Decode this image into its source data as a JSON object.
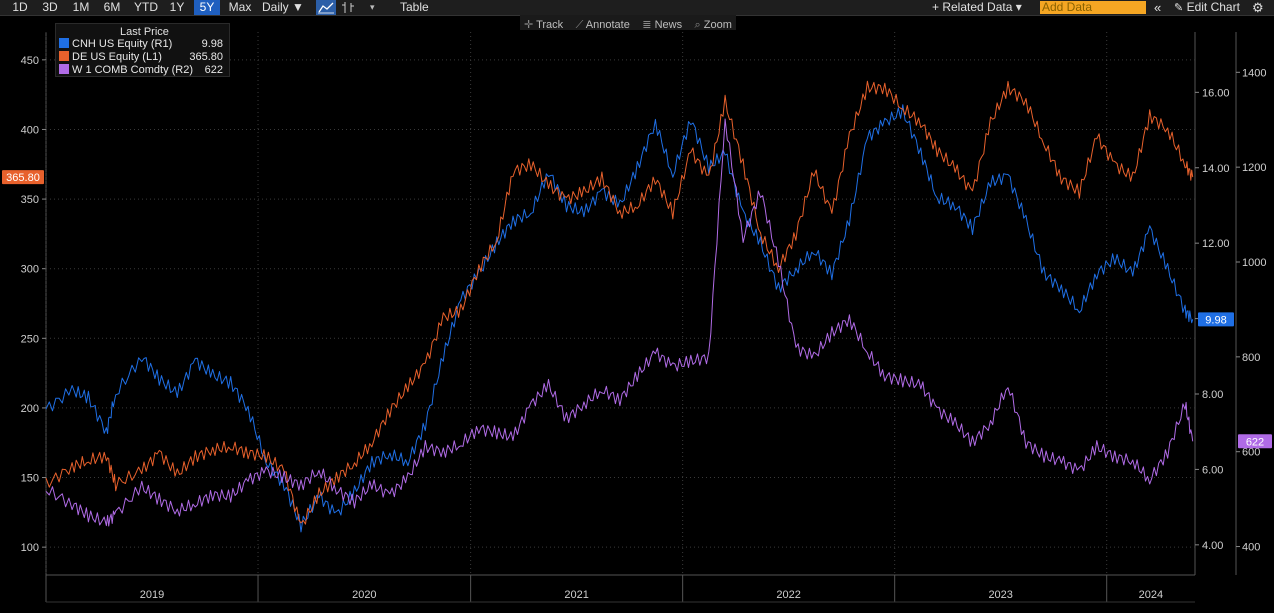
{
  "toolbar": {
    "ranges": [
      "1D",
      "3D",
      "1M",
      "6M",
      "YTD",
      "1Y",
      "5Y",
      "Max"
    ],
    "active_range": "5Y",
    "frequency": "Daily ▼",
    "table_label": "Table",
    "related_data": "+ Related Data ▾",
    "add_data_placeholder": "Add Data",
    "edit_chart": "Edit Chart",
    "collapse_icon": "double-chevron-left-icon",
    "gear_icon": "gear-icon"
  },
  "subbar": {
    "track": "Track",
    "annotate": "Annotate",
    "news": "News",
    "zoom": "Zoom"
  },
  "legend": {
    "header": "Last Price",
    "items": [
      {
        "label": "CNH US Equity  (R1)",
        "value": "9.98",
        "color": "#1f6fe5"
      },
      {
        "label": "DE US Equity  (L1)",
        "value": "365.80",
        "color": "#e8612c"
      },
      {
        "label": "W 1 COMB Comdty  (R2)",
        "value": "622",
        "color": "#b06be6"
      }
    ]
  },
  "chart_data": {
    "type": "line",
    "x_range": [
      "2019-01-01",
      "2024-06-01"
    ],
    "x_tick_labels": [
      "2019",
      "2020",
      "2021",
      "2022",
      "2023",
      "2024"
    ],
    "axes": {
      "L1": {
        "min": 80,
        "max": 470,
        "ticks": [
          100,
          150,
          200,
          250,
          300,
          350,
          400,
          450
        ],
        "tick_labels": [
          "100",
          "150",
          "200",
          "250",
          "300",
          "350",
          "400",
          "450"
        ]
      },
      "R1": {
        "min": 3.2,
        "max": 17.6,
        "ticks": [
          4,
          6,
          8,
          10,
          12,
          14,
          16
        ],
        "tick_labels": [
          "4.00",
          "6.00",
          "8.00",
          "10.00",
          "12.00",
          "14.00",
          "16.00"
        ]
      },
      "R2": {
        "min": 340,
        "max": 1485,
        "ticks": [
          400,
          600,
          800,
          1000,
          1200,
          1400
        ],
        "tick_labels": [
          "400",
          "600",
          "800",
          "1000",
          "1200",
          "1400"
        ]
      }
    },
    "last_value_tags": [
      {
        "axis": "L1",
        "text": "365.80",
        "value": 365.8,
        "color": "#e8612c"
      },
      {
        "axis": "R1",
        "text": "9.98",
        "value": 9.98,
        "color": "#1f6fe5"
      },
      {
        "axis": "R2",
        "text": "622",
        "value": 622,
        "color": "#b06be6"
      }
    ],
    "grid": true,
    "series": [
      {
        "name": "CNH US Equity  (R1)",
        "axis": "R1",
        "color": "#1f6fe5",
        "points": [
          [
            "2019-01-01",
            7.6
          ],
          [
            "2019-02-15",
            8.1
          ],
          [
            "2019-03-15",
            7.9
          ],
          [
            "2019-04-15",
            7.0
          ],
          [
            "2019-05-01",
            8.0
          ],
          [
            "2019-06-15",
            9.0
          ],
          [
            "2019-07-15",
            8.4
          ],
          [
            "2019-08-15",
            8.0
          ],
          [
            "2019-09-15",
            8.9
          ],
          [
            "2019-10-15",
            8.5
          ],
          [
            "2019-11-15",
            8.3
          ],
          [
            "2019-12-15",
            7.6
          ],
          [
            "2020-01-15",
            6.2
          ],
          [
            "2020-02-15",
            5.6
          ],
          [
            "2020-03-15",
            4.5
          ],
          [
            "2020-04-15",
            5.3
          ],
          [
            "2020-05-15",
            4.8
          ],
          [
            "2020-06-15",
            5.4
          ],
          [
            "2020-07-15",
            6.2
          ],
          [
            "2020-08-15",
            6.4
          ],
          [
            "2020-09-15",
            6.2
          ],
          [
            "2020-10-15",
            7.2
          ],
          [
            "2020-11-15",
            9.0
          ],
          [
            "2020-12-15",
            10.5
          ],
          [
            "2021-01-15",
            11.2
          ],
          [
            "2021-02-15",
            12.0
          ],
          [
            "2021-03-15",
            12.6
          ],
          [
            "2021-04-15",
            12.8
          ],
          [
            "2021-05-15",
            13.9
          ],
          [
            "2021-06-15",
            13.0
          ],
          [
            "2021-07-15",
            12.8
          ],
          [
            "2021-08-15",
            13.4
          ],
          [
            "2021-09-15",
            13.0
          ],
          [
            "2021-10-15",
            14.0
          ],
          [
            "2021-11-15",
            15.2
          ],
          [
            "2021-12-15",
            13.8
          ],
          [
            "2022-01-15",
            15.3
          ],
          [
            "2022-02-15",
            14.0
          ],
          [
            "2022-03-15",
            14.4
          ],
          [
            "2022-04-15",
            12.8
          ],
          [
            "2022-05-15",
            12.0
          ],
          [
            "2022-06-15",
            10.8
          ],
          [
            "2022-07-15",
            11.3
          ],
          [
            "2022-08-15",
            11.8
          ],
          [
            "2022-09-15",
            11.2
          ],
          [
            "2022-10-15",
            12.6
          ],
          [
            "2022-11-15",
            14.8
          ],
          [
            "2022-12-15",
            15.2
          ],
          [
            "2023-01-15",
            15.5
          ],
          [
            "2023-02-15",
            14.4
          ],
          [
            "2023-03-15",
            13.2
          ],
          [
            "2023-04-15",
            13.0
          ],
          [
            "2023-05-15",
            12.4
          ],
          [
            "2023-06-15",
            13.6
          ],
          [
            "2023-07-15",
            13.8
          ],
          [
            "2023-08-15",
            12.6
          ],
          [
            "2023-09-15",
            11.2
          ],
          [
            "2023-10-15",
            10.8
          ],
          [
            "2023-11-15",
            10.2
          ],
          [
            "2023-12-15",
            11.2
          ],
          [
            "2024-01-15",
            11.6
          ],
          [
            "2024-02-15",
            11.2
          ],
          [
            "2024-03-15",
            12.4
          ],
          [
            "2024-04-15",
            11.3
          ],
          [
            "2024-05-15",
            10.2
          ],
          [
            "2024-05-28",
            9.98
          ]
        ]
      },
      {
        "name": "DE US Equity  (L1)",
        "axis": "L1",
        "color": "#e8612c",
        "points": [
          [
            "2019-01-01",
            145
          ],
          [
            "2019-02-15",
            158
          ],
          [
            "2019-03-15",
            162
          ],
          [
            "2019-04-15",
            166
          ],
          [
            "2019-05-01",
            145
          ],
          [
            "2019-06-15",
            155
          ],
          [
            "2019-07-15",
            168
          ],
          [
            "2019-08-15",
            152
          ],
          [
            "2019-09-15",
            165
          ],
          [
            "2019-10-15",
            170
          ],
          [
            "2019-11-15",
            172
          ],
          [
            "2019-12-15",
            168
          ],
          [
            "2020-01-15",
            165
          ],
          [
            "2020-02-15",
            155
          ],
          [
            "2020-03-15",
            115
          ],
          [
            "2020-04-15",
            138
          ],
          [
            "2020-05-15",
            150
          ],
          [
            "2020-06-15",
            160
          ],
          [
            "2020-07-15",
            175
          ],
          [
            "2020-08-15",
            198
          ],
          [
            "2020-09-15",
            215
          ],
          [
            "2020-10-15",
            232
          ],
          [
            "2020-11-15",
            265
          ],
          [
            "2020-12-15",
            270
          ],
          [
            "2021-01-15",
            300
          ],
          [
            "2021-02-15",
            320
          ],
          [
            "2021-03-15",
            370
          ],
          [
            "2021-04-15",
            375
          ],
          [
            "2021-05-15",
            360
          ],
          [
            "2021-06-15",
            350
          ],
          [
            "2021-07-15",
            355
          ],
          [
            "2021-08-15",
            365
          ],
          [
            "2021-09-15",
            340
          ],
          [
            "2021-10-15",
            345
          ],
          [
            "2021-11-15",
            365
          ],
          [
            "2021-12-15",
            340
          ],
          [
            "2022-01-15",
            385
          ],
          [
            "2022-02-15",
            365
          ],
          [
            "2022-03-15",
            420
          ],
          [
            "2022-04-15",
            375
          ],
          [
            "2022-05-15",
            325
          ],
          [
            "2022-06-15",
            300
          ],
          [
            "2022-07-15",
            325
          ],
          [
            "2022-08-15",
            370
          ],
          [
            "2022-09-15",
            340
          ],
          [
            "2022-10-15",
            395
          ],
          [
            "2022-11-15",
            430
          ],
          [
            "2022-12-15",
            430
          ],
          [
            "2023-01-15",
            415
          ],
          [
            "2023-02-15",
            405
          ],
          [
            "2023-03-15",
            385
          ],
          [
            "2023-04-15",
            372
          ],
          [
            "2023-05-15",
            355
          ],
          [
            "2023-06-15",
            405
          ],
          [
            "2023-07-15",
            430
          ],
          [
            "2023-08-15",
            420
          ],
          [
            "2023-09-15",
            390
          ],
          [
            "2023-10-15",
            365
          ],
          [
            "2023-11-15",
            355
          ],
          [
            "2023-12-15",
            395
          ],
          [
            "2024-01-15",
            375
          ],
          [
            "2024-02-15",
            365
          ],
          [
            "2024-03-15",
            410
          ],
          [
            "2024-04-15",
            400
          ],
          [
            "2024-05-15",
            375
          ],
          [
            "2024-05-28",
            365.8
          ]
        ]
      },
      {
        "name": "W 1 COMB Comdty  (R2)",
        "axis": "R2",
        "color": "#b06be6",
        "points": [
          [
            "2019-01-01",
            520
          ],
          [
            "2019-02-15",
            490
          ],
          [
            "2019-03-15",
            465
          ],
          [
            "2019-04-15",
            450
          ],
          [
            "2019-05-01",
            470
          ],
          [
            "2019-06-15",
            525
          ],
          [
            "2019-07-15",
            500
          ],
          [
            "2019-08-15",
            475
          ],
          [
            "2019-09-15",
            490
          ],
          [
            "2019-10-15",
            510
          ],
          [
            "2019-11-15",
            505
          ],
          [
            "2019-12-15",
            540
          ],
          [
            "2020-01-15",
            560
          ],
          [
            "2020-02-15",
            545
          ],
          [
            "2020-03-15",
            530
          ],
          [
            "2020-04-15",
            560
          ],
          [
            "2020-05-15",
            520
          ],
          [
            "2020-06-15",
            495
          ],
          [
            "2020-07-15",
            530
          ],
          [
            "2020-08-15",
            510
          ],
          [
            "2020-09-15",
            545
          ],
          [
            "2020-10-15",
            610
          ],
          [
            "2020-11-15",
            600
          ],
          [
            "2020-12-15",
            615
          ],
          [
            "2021-01-15",
            650
          ],
          [
            "2021-02-15",
            640
          ],
          [
            "2021-03-15",
            630
          ],
          [
            "2021-04-15",
            700
          ],
          [
            "2021-05-15",
            740
          ],
          [
            "2021-06-15",
            670
          ],
          [
            "2021-07-15",
            700
          ],
          [
            "2021-08-15",
            730
          ],
          [
            "2021-09-15",
            710
          ],
          [
            "2021-10-15",
            760
          ],
          [
            "2021-11-15",
            810
          ],
          [
            "2021-12-15",
            780
          ],
          [
            "2022-01-15",
            790
          ],
          [
            "2022-02-15",
            800
          ],
          [
            "2022-03-15",
            1300
          ],
          [
            "2022-04-15",
            1050
          ],
          [
            "2022-05-15",
            1150
          ],
          [
            "2022-06-15",
            1000
          ],
          [
            "2022-07-15",
            820
          ],
          [
            "2022-08-15",
            800
          ],
          [
            "2022-09-15",
            850
          ],
          [
            "2022-10-15",
            880
          ],
          [
            "2022-11-15",
            810
          ],
          [
            "2022-12-15",
            760
          ],
          [
            "2023-01-15",
            750
          ],
          [
            "2023-02-15",
            740
          ],
          [
            "2023-03-15",
            690
          ],
          [
            "2023-04-15",
            660
          ],
          [
            "2023-05-15",
            620
          ],
          [
            "2023-06-15",
            660
          ],
          [
            "2023-07-15",
            740
          ],
          [
            "2023-08-15",
            620
          ],
          [
            "2023-09-15",
            590
          ],
          [
            "2023-10-15",
            580
          ],
          [
            "2023-11-15",
            560
          ],
          [
            "2023-12-15",
            610
          ],
          [
            "2024-01-15",
            590
          ],
          [
            "2024-02-15",
            580
          ],
          [
            "2024-03-15",
            540
          ],
          [
            "2024-04-15",
            600
          ],
          [
            "2024-05-15",
            700
          ],
          [
            "2024-05-28",
            622
          ]
        ]
      }
    ]
  }
}
